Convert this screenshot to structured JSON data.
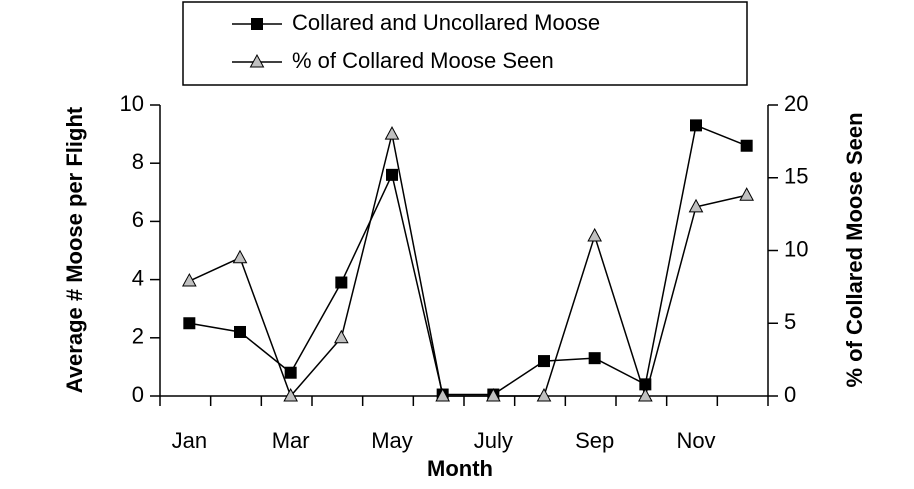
{
  "chart_data": {
    "type": "line",
    "categories": [
      "Jan",
      null,
      "Mar",
      null,
      "May",
      null,
      "July",
      null,
      "Sep",
      null,
      "Nov",
      null
    ],
    "series": [
      {
        "name": "Collared and Uncollared Moose",
        "color": "#000000",
        "marker": "square",
        "values": [
          2.5,
          2.2,
          0.8,
          3.9,
          7.6,
          0.05,
          0.05,
          1.2,
          1.3,
          0.4,
          9.3,
          8.6
        ]
      },
      {
        "name": "% of Collared Moose Seen",
        "color": "#c0c0c0",
        "marker": "triangle",
        "axis": "y2",
        "values": [
          7.9,
          9.5,
          0,
          4,
          18,
          0,
          0,
          0,
          11,
          0,
          13,
          13.8
        ]
      }
    ],
    "x_label": "Month",
    "y_label": "Average # Moose per Flight",
    "y2_label": "% of Collared Moose Seen",
    "ylim": [
      0,
      10
    ],
    "yticks": [
      0,
      2,
      4,
      6,
      8,
      10
    ],
    "y2lim": [
      0,
      20
    ],
    "y2ticks": [
      0,
      5,
      10,
      15,
      20
    ],
    "legend": "top"
  }
}
